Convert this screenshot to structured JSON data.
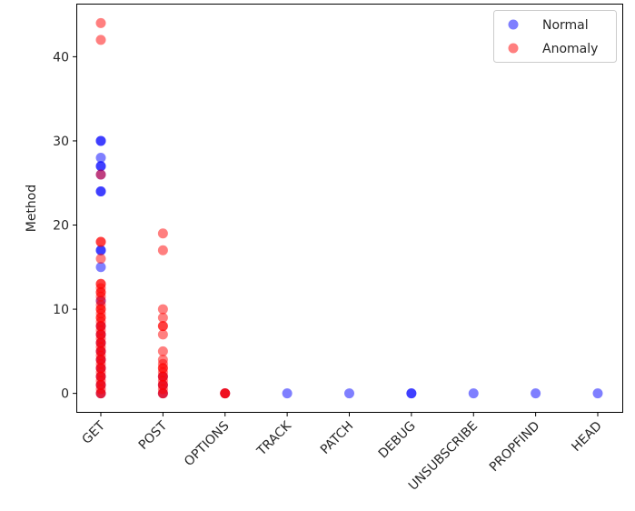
{
  "chart_data": {
    "type": "scatter",
    "title": "",
    "xlabel": "",
    "ylabel": "Method",
    "categories": [
      "GET",
      "POST",
      "OPTIONS",
      "TRACK",
      "PATCH",
      "DEBUG",
      "UNSUBSCRIBE",
      "PROPFIND",
      "HEAD"
    ],
    "ylim": [
      -2.2,
      46.2
    ],
    "yticks": [
      0,
      10,
      20,
      30,
      40
    ],
    "grid": false,
    "legend_position": "top-right",
    "series": [
      {
        "name": "Normal",
        "color": "#0000ff",
        "alpha": 0.5,
        "points": [
          {
            "x": "GET",
            "y": 0
          },
          {
            "x": "GET",
            "y": 1
          },
          {
            "x": "GET",
            "y": 2
          },
          {
            "x": "GET",
            "y": 3
          },
          {
            "x": "GET",
            "y": 4
          },
          {
            "x": "GET",
            "y": 5
          },
          {
            "x": "GET",
            "y": 6
          },
          {
            "x": "GET",
            "y": 7
          },
          {
            "x": "GET",
            "y": 8
          },
          {
            "x": "GET",
            "y": 11
          },
          {
            "x": "GET",
            "y": 15
          },
          {
            "x": "GET",
            "y": 17
          },
          {
            "x": "GET",
            "y": 17
          },
          {
            "x": "GET",
            "y": 24
          },
          {
            "x": "GET",
            "y": 24
          },
          {
            "x": "GET",
            "y": 26
          },
          {
            "x": "GET",
            "y": 27
          },
          {
            "x": "GET",
            "y": 27
          },
          {
            "x": "GET",
            "y": 28
          },
          {
            "x": "GET",
            "y": 30
          },
          {
            "x": "GET",
            "y": 30
          },
          {
            "x": "POST",
            "y": 0
          },
          {
            "x": "POST",
            "y": 1
          },
          {
            "x": "POST",
            "y": 2
          },
          {
            "x": "OPTIONS",
            "y": 0
          },
          {
            "x": "TRACK",
            "y": 0
          },
          {
            "x": "PATCH",
            "y": 0
          },
          {
            "x": "DEBUG",
            "y": 0
          },
          {
            "x": "DEBUG",
            "y": 0
          },
          {
            "x": "UNSUBSCRIBE",
            "y": 0
          },
          {
            "x": "PROPFIND",
            "y": 0
          },
          {
            "x": "HEAD",
            "y": 0
          }
        ]
      },
      {
        "name": "Anomaly",
        "color": "#ff0000",
        "alpha": 0.5,
        "points": [
          {
            "x": "GET",
            "y": 0
          },
          {
            "x": "GET",
            "y": 0
          },
          {
            "x": "GET",
            "y": 0.5
          },
          {
            "x": "GET",
            "y": 1
          },
          {
            "x": "GET",
            "y": 1
          },
          {
            "x": "GET",
            "y": 1.5
          },
          {
            "x": "GET",
            "y": 2
          },
          {
            "x": "GET",
            "y": 2
          },
          {
            "x": "GET",
            "y": 2.5
          },
          {
            "x": "GET",
            "y": 3
          },
          {
            "x": "GET",
            "y": 3
          },
          {
            "x": "GET",
            "y": 3.5
          },
          {
            "x": "GET",
            "y": 4
          },
          {
            "x": "GET",
            "y": 4
          },
          {
            "x": "GET",
            "y": 4.5
          },
          {
            "x": "GET",
            "y": 5
          },
          {
            "x": "GET",
            "y": 5
          },
          {
            "x": "GET",
            "y": 5.5
          },
          {
            "x": "GET",
            "y": 6
          },
          {
            "x": "GET",
            "y": 6
          },
          {
            "x": "GET",
            "y": 6.5
          },
          {
            "x": "GET",
            "y": 7
          },
          {
            "x": "GET",
            "y": 7
          },
          {
            "x": "GET",
            "y": 7.5
          },
          {
            "x": "GET",
            "y": 8
          },
          {
            "x": "GET",
            "y": 8
          },
          {
            "x": "GET",
            "y": 8.5
          },
          {
            "x": "GET",
            "y": 9
          },
          {
            "x": "GET",
            "y": 9
          },
          {
            "x": "GET",
            "y": 9.5
          },
          {
            "x": "GET",
            "y": 10
          },
          {
            "x": "GET",
            "y": 10
          },
          {
            "x": "GET",
            "y": 10.5
          },
          {
            "x": "GET",
            "y": 11
          },
          {
            "x": "GET",
            "y": 11.5
          },
          {
            "x": "GET",
            "y": 12
          },
          {
            "x": "GET",
            "y": 12
          },
          {
            "x": "GET",
            "y": 12.5
          },
          {
            "x": "GET",
            "y": 13
          },
          {
            "x": "GET",
            "y": 13
          },
          {
            "x": "GET",
            "y": 16
          },
          {
            "x": "GET",
            "y": 18
          },
          {
            "x": "GET",
            "y": 18
          },
          {
            "x": "GET",
            "y": 26
          },
          {
            "x": "GET",
            "y": 42
          },
          {
            "x": "GET",
            "y": 44
          },
          {
            "x": "POST",
            "y": 0
          },
          {
            "x": "POST",
            "y": 0
          },
          {
            "x": "POST",
            "y": 0.5
          },
          {
            "x": "POST",
            "y": 1
          },
          {
            "x": "POST",
            "y": 1
          },
          {
            "x": "POST",
            "y": 1.5
          },
          {
            "x": "POST",
            "y": 2
          },
          {
            "x": "POST",
            "y": 2
          },
          {
            "x": "POST",
            "y": 2.5
          },
          {
            "x": "POST",
            "y": 3
          },
          {
            "x": "POST",
            "y": 3
          },
          {
            "x": "POST",
            "y": 3.5
          },
          {
            "x": "POST",
            "y": 4
          },
          {
            "x": "POST",
            "y": 5
          },
          {
            "x": "POST",
            "y": 7
          },
          {
            "x": "POST",
            "y": 8
          },
          {
            "x": "POST",
            "y": 8
          },
          {
            "x": "POST",
            "y": 9
          },
          {
            "x": "POST",
            "y": 10
          },
          {
            "x": "POST",
            "y": 17
          },
          {
            "x": "POST",
            "y": 19
          },
          {
            "x": "OPTIONS",
            "y": 0
          },
          {
            "x": "OPTIONS",
            "y": 0
          },
          {
            "x": "OPTIONS",
            "y": 0
          }
        ]
      }
    ]
  }
}
